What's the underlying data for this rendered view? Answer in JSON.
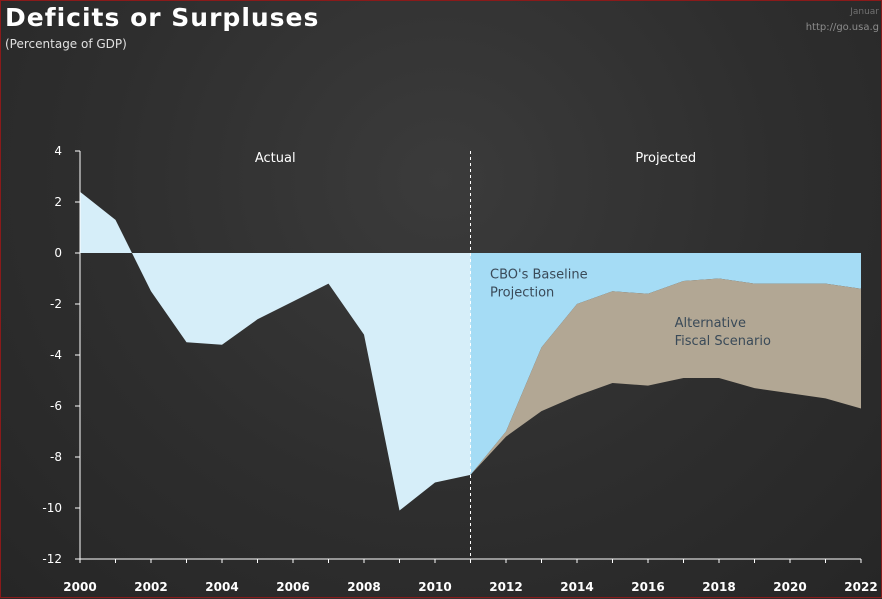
{
  "header": {
    "title": "Deficits or Surpluses",
    "subtitle": "(Percentage of GDP)",
    "source_line1": "Januar",
    "source_line2": "http://go.usa.g"
  },
  "chart_data": {
    "type": "area",
    "title": "Deficits or Surpluses",
    "subtitle": "(Percentage of GDP)",
    "xlabel": "",
    "ylabel": "",
    "xlim": [
      2000,
      2022
    ],
    "ylim": [
      -12,
      4
    ],
    "yticks": [
      4,
      2,
      0,
      -2,
      -4,
      -6,
      -8,
      -10,
      -12
    ],
    "xticks": [
      2000,
      2002,
      2004,
      2006,
      2008,
      2010,
      2012,
      2014,
      2016,
      2018,
      2020,
      2022
    ],
    "sections": [
      {
        "label": "Actual"
      },
      {
        "label": "Projected"
      }
    ],
    "divider_x": 2011,
    "series": [
      {
        "name": "Actual",
        "color": "#d6eef9",
        "x": [
          2000,
          2001,
          2002,
          2003,
          2004,
          2005,
          2006,
          2007,
          2008,
          2009,
          2010,
          2011
        ],
        "values": [
          2.4,
          1.3,
          -1.5,
          -3.5,
          -3.6,
          -2.6,
          -1.9,
          -1.2,
          -3.2,
          -10.1,
          -9.0,
          -8.7
        ]
      },
      {
        "name": "CBO's Baseline Projection",
        "color": "#a5dcf5",
        "x": [
          2011,
          2012,
          2013,
          2014,
          2015,
          2016,
          2017,
          2018,
          2019,
          2020,
          2021,
          2022
        ],
        "values": [
          -8.7,
          -7.0,
          -3.7,
          -2.0,
          -1.5,
          -1.6,
          -1.1,
          -1.0,
          -1.2,
          -1.2,
          -1.2,
          -1.4
        ]
      },
      {
        "name": "Alternative Fiscal Scenario",
        "color": "#b2a794",
        "x": [
          2011,
          2012,
          2013,
          2014,
          2015,
          2016,
          2017,
          2018,
          2019,
          2020,
          2021,
          2022
        ],
        "values": [
          -8.7,
          -7.2,
          -6.2,
          -5.6,
          -5.1,
          -5.2,
          -4.9,
          -4.9,
          -5.3,
          -5.5,
          -5.7,
          -6.1
        ]
      }
    ],
    "annotations": [
      {
        "lines": [
          "CBO's Baseline",
          "Projection"
        ]
      },
      {
        "lines": [
          "Alternative",
          "Fiscal Scenario"
        ]
      }
    ]
  }
}
